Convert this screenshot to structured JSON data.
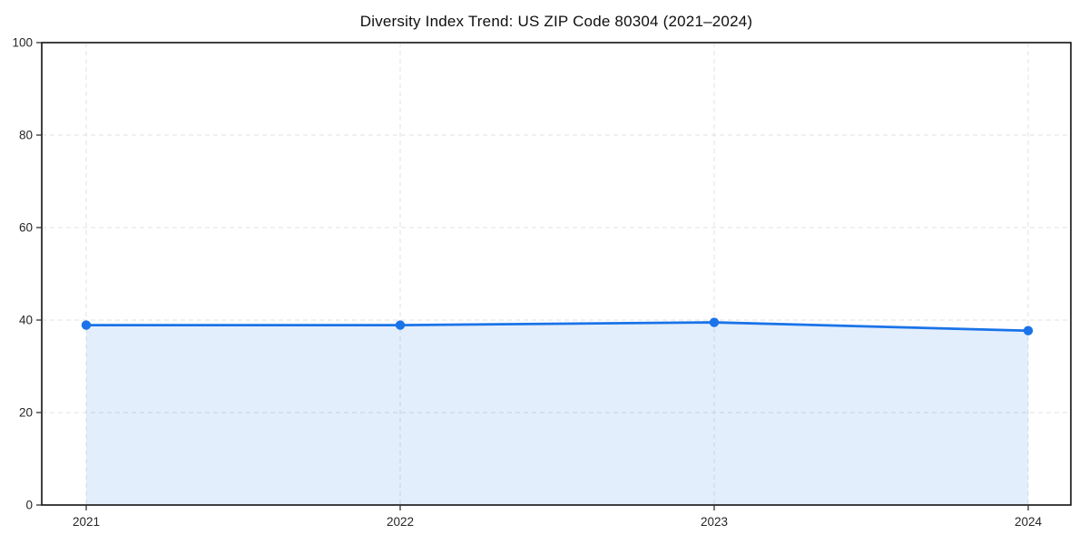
{
  "title": "Diversity Index Trend: US ZIP Code 80304 (2021–2024)",
  "chart_data": {
    "type": "line",
    "title": "Diversity Index Trend: US ZIP Code 80304 (2021–2024)",
    "x": [
      "2021",
      "2022",
      "2023",
      "2024"
    ],
    "series": [
      {
        "name": "Diversity Index",
        "values": [
          38.9,
          38.9,
          39.5,
          37.7
        ]
      }
    ],
    "xlabel": "",
    "ylabel": "",
    "ylim": [
      0,
      100
    ],
    "yticks": [
      0,
      20,
      40,
      60,
      80,
      100
    ],
    "grid": true,
    "grid_style": "dashed",
    "legend": "none",
    "area_fill": true,
    "colors": {
      "line": "#1a73e8",
      "marker": "#1a73e8",
      "area": "rgba(26,115,232,0.12)",
      "grid": "#e0e0e0",
      "spine": "#111111",
      "tick": "#333333",
      "tick_label": "#262626"
    }
  }
}
